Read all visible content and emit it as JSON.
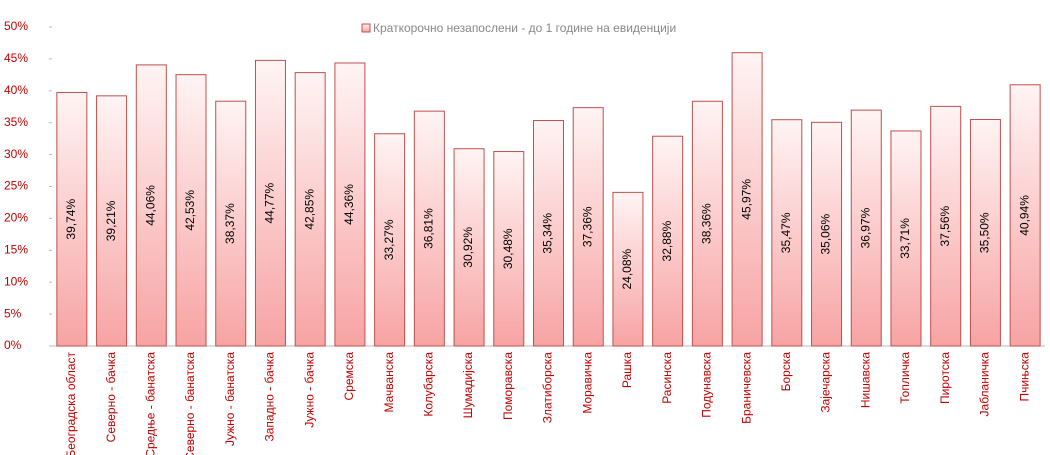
{
  "chart_data": {
    "type": "bar",
    "categories": [
      "Београдска област",
      "Северно - бачка",
      "Средње - банатска",
      "Северно - банатска",
      "Јужно - банатска",
      "Западно - бачка",
      "Јужно - бачка",
      "Сремска",
      "Мачванска",
      "Колубарска",
      "Шумадијска",
      "Поморавска",
      "Златиборска",
      "Моравичка",
      "Рашка",
      "Расинска",
      "Подунавска",
      "Браничевска",
      "Борска",
      "Зајечарска",
      "Нишавска",
      "Топличка",
      "Пиротска",
      "Јабланичка",
      "Пчињска"
    ],
    "series": [
      {
        "name": "Краткорочно незапослени - до 1 године на евиденцији",
        "color": "#f7a3a3",
        "border": "#c0504d",
        "values": [
          39.74,
          39.21,
          44.06,
          42.53,
          38.37,
          44.77,
          42.85,
          44.36,
          33.27,
          36.81,
          30.92,
          30.48,
          35.34,
          37.36,
          24.08,
          32.88,
          38.36,
          45.97,
          35.47,
          35.06,
          36.97,
          33.71,
          37.56,
          35.5,
          40.94
        ],
        "value_labels": [
          "39,74%",
          "39,21%",
          "44,06%",
          "42,53%",
          "38,37%",
          "44,77%",
          "42,85%",
          "44,36%",
          "33,27%",
          "36,81%",
          "30,92%",
          "30,48%",
          "35,34%",
          "37,36%",
          "24,08%",
          "32,88%",
          "38,36%",
          "45,97%",
          "35,47%",
          "35,06%",
          "36,97%",
          "33,71%",
          "37,56%",
          "35,50%",
          "40,94%"
        ]
      }
    ],
    "ylim": [
      0,
      50
    ],
    "yticks": [
      {
        "value": 0,
        "label": "0%"
      },
      {
        "value": 5,
        "label": "5%"
      },
      {
        "value": 10,
        "label": "10%"
      },
      {
        "value": 15,
        "label": "15%"
      },
      {
        "value": 20,
        "label": "20%"
      },
      {
        "value": 25,
        "label": "25%"
      },
      {
        "value": 30,
        "label": "30%"
      },
      {
        "value": 35,
        "label": "35%"
      },
      {
        "value": 40,
        "label": "40%"
      },
      {
        "value": 45,
        "label": "45%"
      },
      {
        "value": 50,
        "label": "50%"
      }
    ],
    "legend": "top"
  }
}
